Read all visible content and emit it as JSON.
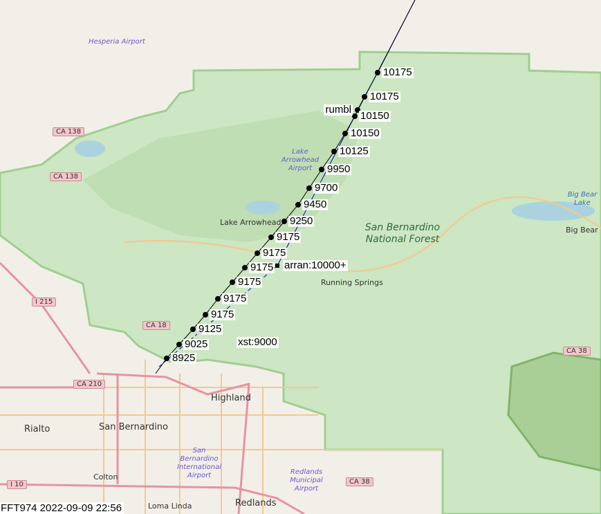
{
  "caption": "FFT974 2022-09-09 22:56",
  "colors": {
    "track": "#000000",
    "route": "#0000cc",
    "forest": "#cde6c3",
    "land": "#f2efe9",
    "water": "#aad3df"
  },
  "track_points": [
    {
      "label": "10175"
    },
    {
      "label": "10175"
    },
    {
      "label": "rumbl"
    },
    {
      "label": "10150"
    },
    {
      "label": "10150"
    },
    {
      "label": "10125"
    },
    {
      "label": "9950"
    },
    {
      "label": "9700"
    },
    {
      "label": "9450"
    },
    {
      "label": "9250"
    },
    {
      "label": "9175"
    },
    {
      "label": "9175"
    },
    {
      "label": "9175"
    },
    {
      "label": "9175"
    },
    {
      "label": "9175"
    },
    {
      "label": "9175"
    },
    {
      "label": "9125"
    },
    {
      "label": "9025"
    },
    {
      "label": "8925"
    }
  ],
  "route_fixes": [
    {
      "label": "arran:10000+"
    },
    {
      "label": "xst:9000"
    }
  ],
  "places": {
    "hesperia_airport": "Hesperia Airport",
    "lake_arrowhead_airport": "Lake Arrowhead Airport",
    "lake_arrowhead": "Lake Arrowhead",
    "forest": "San Bernardino National Forest",
    "running_springs": "Running Springs",
    "big_bear_lake_water": "Big Bear Lake",
    "big_bear_lake_town": "Big Bear L",
    "highland": "Highland",
    "rialto": "Rialto",
    "san_bernardino": "San Bernardino",
    "sb_airport": "San Bernardino International Airport",
    "redlands_airport": "Redlands Municipal Airport",
    "colton": "Colton",
    "loma_linda": "Loma Linda",
    "redlands": "Redlands"
  },
  "shields": [
    "CA 138",
    "CA 138",
    "I 215",
    "CA 18",
    "CA 210",
    "I 10",
    "CA 38",
    "CA 38"
  ]
}
